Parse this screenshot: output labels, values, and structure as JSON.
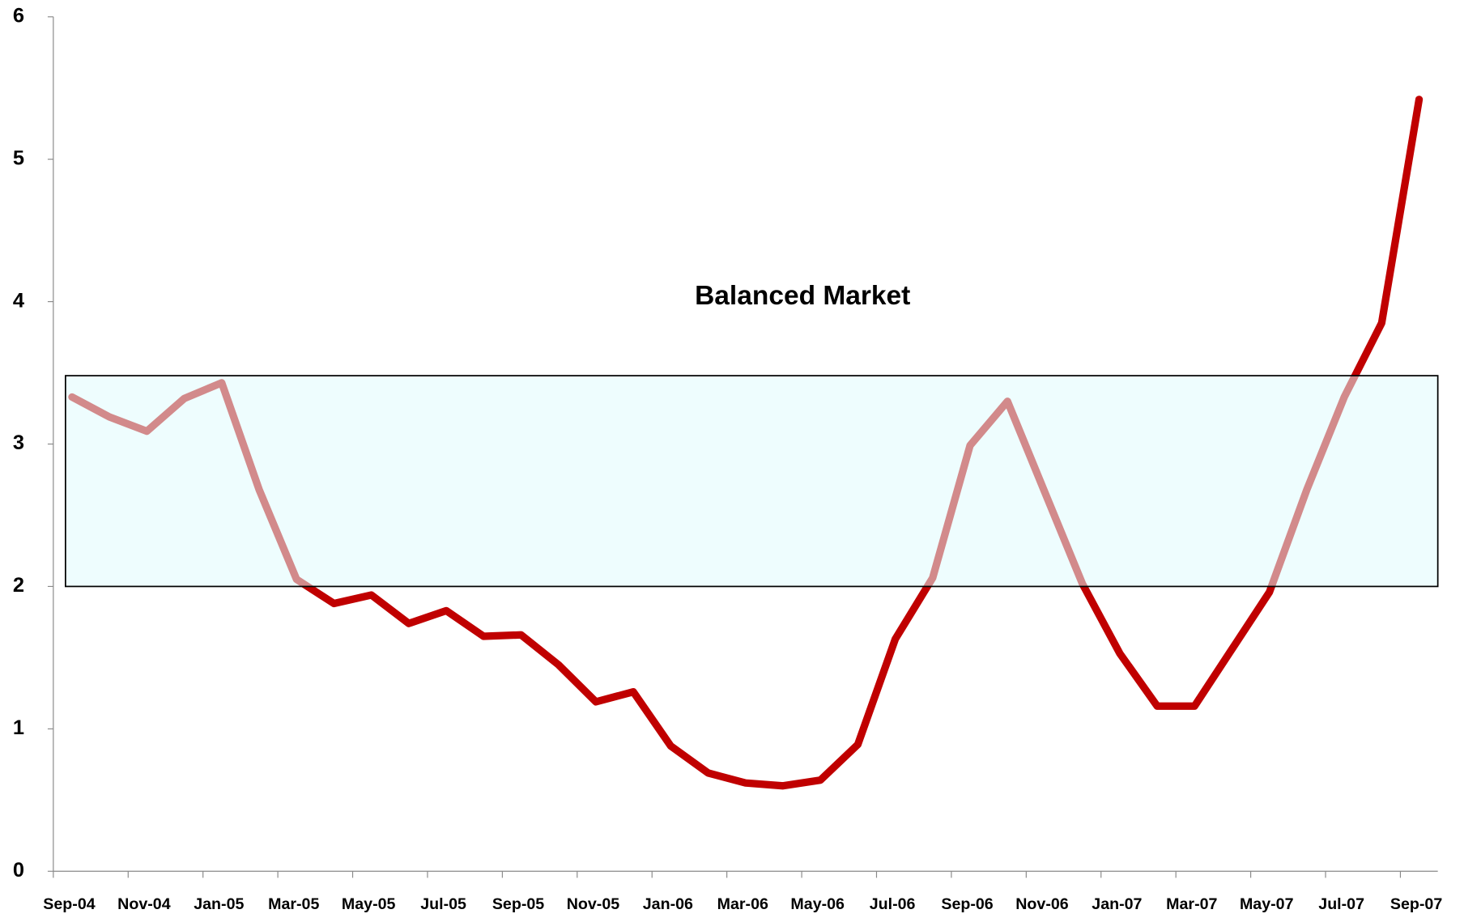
{
  "chart_data": {
    "type": "line",
    "categories": [
      "Sep-04",
      null,
      "Nov-04",
      null,
      "Jan-05",
      null,
      "Mar-05",
      null,
      "May-05",
      null,
      "Jul-05",
      null,
      "Sep-05",
      null,
      "Nov-05",
      null,
      "Jan-06",
      null,
      "Mar-06",
      null,
      "May-06",
      null,
      "Jul-06",
      null,
      "Sep-06",
      null,
      "Nov-06",
      null,
      "Jan-07",
      null,
      "Mar-07",
      null,
      "May-07",
      null,
      "Jul-07",
      null,
      "Sep-07"
    ],
    "series": [
      {
        "name": null,
        "color": "#c00000",
        "values": [
          3.33,
          3.19,
          3.09,
          3.32,
          3.43,
          2.68,
          2.05,
          1.88,
          1.94,
          1.74,
          1.83,
          1.65,
          1.66,
          1.45,
          1.19,
          1.26,
          0.88,
          0.69,
          0.62,
          0.6,
          0.64,
          0.89,
          1.63,
          2.06,
          2.99,
          3.3,
          2.66,
          2.02,
          1.53,
          1.16,
          1.16,
          1.56,
          1.96,
          2.68,
          3.33,
          3.85,
          5.42
        ]
      }
    ],
    "ylim": [
      0,
      6
    ],
    "yticks": [
      0,
      1,
      2,
      3,
      4,
      5,
      6
    ],
    "grid": false,
    "balanced_range": [
      2,
      3.48
    ],
    "balanced_color": "#e0fbfd",
    "annotation": "Balanced Market"
  }
}
